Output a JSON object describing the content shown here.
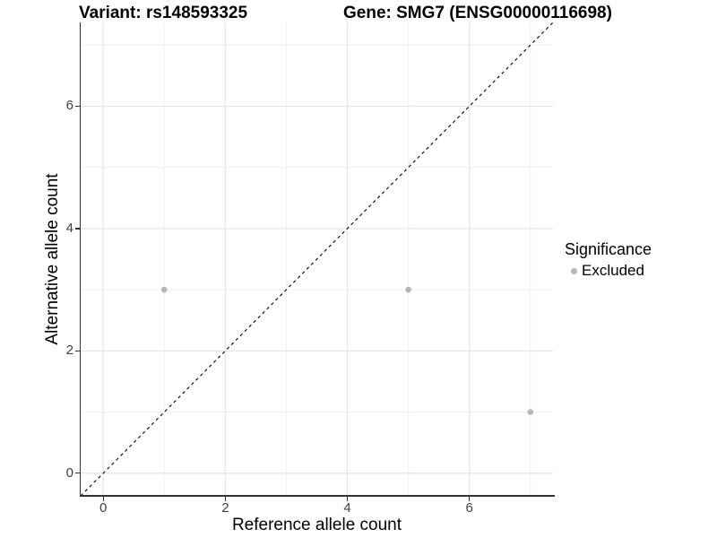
{
  "chart_data": {
    "type": "scatter",
    "title_left": "Variant: rs148593325",
    "title_right": "Gene: SMG7 (ENSG00000116698)",
    "xlabel": "Reference allele count",
    "ylabel": "Alternative allele count",
    "xlim": [
      -0.37,
      7.37
    ],
    "ylim": [
      -0.37,
      7.37
    ],
    "x_ticks": [
      0,
      2,
      4,
      6
    ],
    "y_ticks": [
      0,
      2,
      4,
      6
    ],
    "x_minor_gridlines": [
      1,
      3,
      5,
      7
    ],
    "y_minor_gridlines": [
      1,
      3,
      5,
      7
    ],
    "grid": "major and minor gridlines on",
    "legend_position": "right",
    "legend_title": "Significance",
    "series": [
      {
        "name": "Excluded",
        "color": "#b7b7b7",
        "points": [
          [
            1,
            3
          ],
          [
            5,
            3
          ],
          [
            7,
            1
          ]
        ]
      }
    ],
    "identity_line": {
      "style": "dashed",
      "color": "#000000",
      "from": [
        -0.37,
        -0.37
      ],
      "to": [
        7.37,
        7.37
      ]
    }
  },
  "colors": {
    "background": "#ffffff",
    "grid_major": "#e5e5e5",
    "grid_minor": "#f0f0f0",
    "axis_line": "#333333",
    "tick_text": "#404040",
    "title_text": "#000000",
    "point": "#b7b7b7"
  }
}
